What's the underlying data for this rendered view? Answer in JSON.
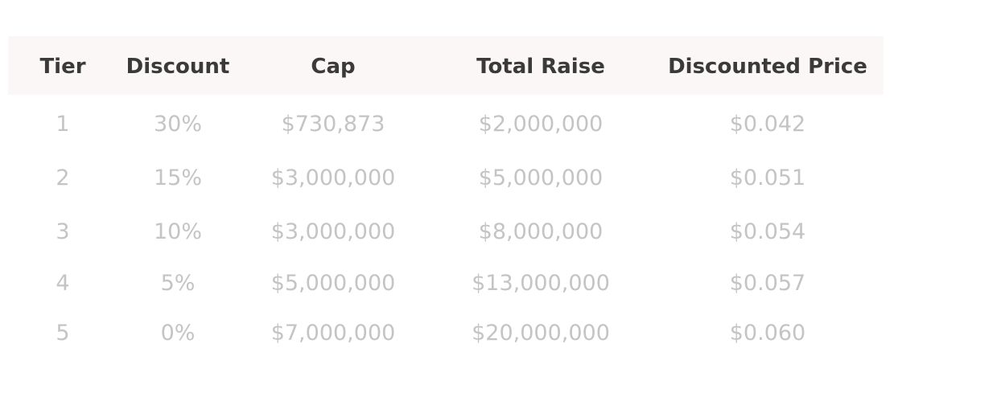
{
  "table": {
    "headers": [
      "Tier",
      "Discount",
      "Cap",
      "Total Raise",
      "Discounted Price"
    ],
    "rows": [
      [
        "1",
        "30%",
        "$730,873",
        "$2,000,000",
        "$0.042"
      ],
      [
        "2",
        "15%",
        "$3,000,000",
        "$5,000,000",
        "$0.051"
      ],
      [
        "3",
        "10%",
        "$3,000,000",
        "$8,000,000",
        "$0.054"
      ],
      [
        "4",
        "5%",
        "$5,000,000",
        "$13,000,000",
        "$0.057"
      ],
      [
        "5",
        "0%",
        "$7,000,000",
        "$20,000,000",
        "$0.060"
      ]
    ],
    "header_background": "#faf7f6",
    "header_text_color": "#3a3a3a",
    "cell_text_color": "#c4c4c4"
  }
}
